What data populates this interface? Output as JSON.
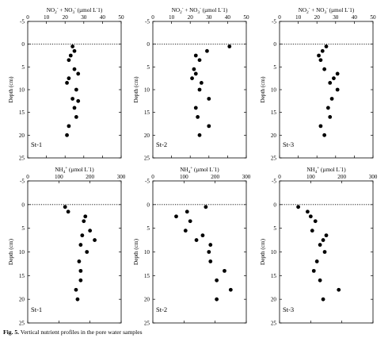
{
  "figure": {
    "caption_label": "Fig. 5.",
    "caption_text": " Vertical nutrient profiles in the pore water samples"
  },
  "axis_titles": {
    "nox": "NO2- + NO3- (µmol L-1)",
    "nh4": "NH4+ (µmol L-1)",
    "depth": "Depth (cm)"
  },
  "chart_data": [
    {
      "type": "scatter",
      "panel": "St-1",
      "row": "top",
      "col": 0,
      "xlabel": "NO2- + NO3- (µmol L-1)",
      "ylabel": "Depth (cm)",
      "xlim": [
        0,
        50
      ],
      "ylim": [
        -5,
        25
      ],
      "y_inverted": true,
      "xticks": [
        0,
        10,
        20,
        30,
        40,
        50
      ],
      "yticks": [
        -5,
        0,
        5,
        10,
        15,
        20,
        25
      ],
      "reference_line": {
        "y": 0,
        "style": "dotted"
      },
      "points": [
        [
          24,
          0.5
        ],
        [
          25,
          1.5
        ],
        [
          23,
          2.5
        ],
        [
          22,
          3.5
        ],
        [
          25,
          5.5
        ],
        [
          27,
          6.5
        ],
        [
          22,
          7.5
        ],
        [
          21,
          8.5
        ],
        [
          26,
          10
        ],
        [
          24,
          12
        ],
        [
          27,
          12.5
        ],
        [
          25,
          14
        ],
        [
          26,
          16
        ],
        [
          22,
          18
        ],
        [
          21,
          20
        ]
      ]
    },
    {
      "type": "scatter",
      "panel": "St-2",
      "row": "top",
      "col": 1,
      "xlabel": "NO2- + NO3- (µmol L-1)",
      "ylabel": "Depth (cm)",
      "xlim": [
        0,
        50
      ],
      "ylim": [
        -5,
        25
      ],
      "y_inverted": true,
      "xticks": [
        0,
        10,
        20,
        30,
        40,
        50
      ],
      "yticks": [
        -5,
        0,
        5,
        10,
        15,
        20,
        25
      ],
      "reference_line": {
        "y": 0,
        "style": "dotted"
      },
      "points": [
        [
          41,
          0.5
        ],
        [
          29,
          1.5
        ],
        [
          23,
          2.5
        ],
        [
          25,
          3.5
        ],
        [
          22,
          5.5
        ],
        [
          23,
          6.5
        ],
        [
          21,
          7.5
        ],
        [
          26,
          8.5
        ],
        [
          25,
          10
        ],
        [
          30,
          12
        ],
        [
          23,
          14
        ],
        [
          24,
          16
        ],
        [
          30,
          18
        ],
        [
          25,
          20
        ]
      ]
    },
    {
      "type": "scatter",
      "panel": "St-3",
      "row": "top",
      "col": 2,
      "xlabel": "NO2- + NO3- (µmol L-1)",
      "ylabel": "Depth (cm)",
      "xlim": [
        0,
        50
      ],
      "ylim": [
        -5,
        25
      ],
      "y_inverted": true,
      "xticks": [
        0,
        10,
        20,
        30,
        40,
        50
      ],
      "yticks": [
        -5,
        0,
        5,
        10,
        15,
        20,
        25
      ],
      "reference_line": {
        "y": 0,
        "style": "dotted"
      },
      "points": [
        [
          25,
          0.5
        ],
        [
          23,
          1.5
        ],
        [
          21,
          2.5
        ],
        [
          22,
          3.5
        ],
        [
          24,
          5.5
        ],
        [
          31,
          6.5
        ],
        [
          29,
          7.5
        ],
        [
          27,
          8.5
        ],
        [
          31,
          10
        ],
        [
          28,
          12
        ],
        [
          26,
          14
        ],
        [
          27,
          16
        ],
        [
          22,
          18
        ],
        [
          24,
          20
        ]
      ]
    },
    {
      "type": "scatter",
      "panel": "St-1",
      "row": "bottom",
      "col": 0,
      "xlabel": "NH4+ (µmol L-1)",
      "ylabel": "Depth (cm)",
      "xlim": [
        0,
        300
      ],
      "ylim": [
        -5,
        25
      ],
      "y_inverted": true,
      "xticks": [
        0,
        100,
        200,
        300
      ],
      "yticks": [
        -5,
        0,
        5,
        10,
        15,
        20,
        25
      ],
      "reference_line": {
        "y": 0,
        "style": "dotted"
      },
      "points": [
        [
          120,
          0.5
        ],
        [
          130,
          1.5
        ],
        [
          185,
          2.5
        ],
        [
          180,
          3.5
        ],
        [
          200,
          5.5
        ],
        [
          215,
          7.5
        ],
        [
          175,
          6.5
        ],
        [
          170,
          8.5
        ],
        [
          190,
          10
        ],
        [
          165,
          12
        ],
        [
          170,
          14
        ],
        [
          170,
          16
        ],
        [
          155,
          18
        ],
        [
          160,
          20
        ]
      ]
    },
    {
      "type": "scatter",
      "panel": "St-2",
      "row": "bottom",
      "col": 1,
      "xlabel": "NH4+ (µmol L-1)",
      "ylabel": "Depth (cm)",
      "xlim": [
        0,
        300
      ],
      "ylim": [
        -5,
        25
      ],
      "y_inverted": true,
      "xticks": [
        0,
        100,
        200,
        300
      ],
      "yticks": [
        -5,
        0,
        5,
        10,
        15,
        20,
        25
      ],
      "reference_line": {
        "y": 0,
        "style": "dotted"
      },
      "points": [
        [
          170,
          0.5
        ],
        [
          110,
          1.5
        ],
        [
          75,
          2.5
        ],
        [
          120,
          3.5
        ],
        [
          105,
          5.5
        ],
        [
          160,
          6.5
        ],
        [
          140,
          7.5
        ],
        [
          185,
          8.5
        ],
        [
          180,
          10
        ],
        [
          185,
          12
        ],
        [
          230,
          14
        ],
        [
          205,
          16
        ],
        [
          250,
          18
        ],
        [
          205,
          20
        ]
      ]
    },
    {
      "type": "scatter",
      "panel": "St-3",
      "row": "bottom",
      "col": 2,
      "xlabel": "NH4+ (µmol L-1)",
      "ylabel": "Depth (cm)",
      "xlim": [
        0,
        300
      ],
      "ylim": [
        -5,
        25
      ],
      "y_inverted": true,
      "xticks": [
        0,
        100,
        200,
        300
      ],
      "yticks": [
        -5,
        0,
        5,
        10,
        15,
        20,
        25
      ],
      "reference_line": {
        "y": 0,
        "style": "dotted"
      },
      "points": [
        [
          60,
          0.5
        ],
        [
          90,
          1.5
        ],
        [
          100,
          2.5
        ],
        [
          115,
          3.5
        ],
        [
          105,
          5.5
        ],
        [
          150,
          6.5
        ],
        [
          140,
          7.5
        ],
        [
          130,
          8.5
        ],
        [
          145,
          10
        ],
        [
          120,
          12
        ],
        [
          110,
          14
        ],
        [
          130,
          16
        ],
        [
          190,
          18
        ],
        [
          140,
          20
        ]
      ]
    }
  ]
}
